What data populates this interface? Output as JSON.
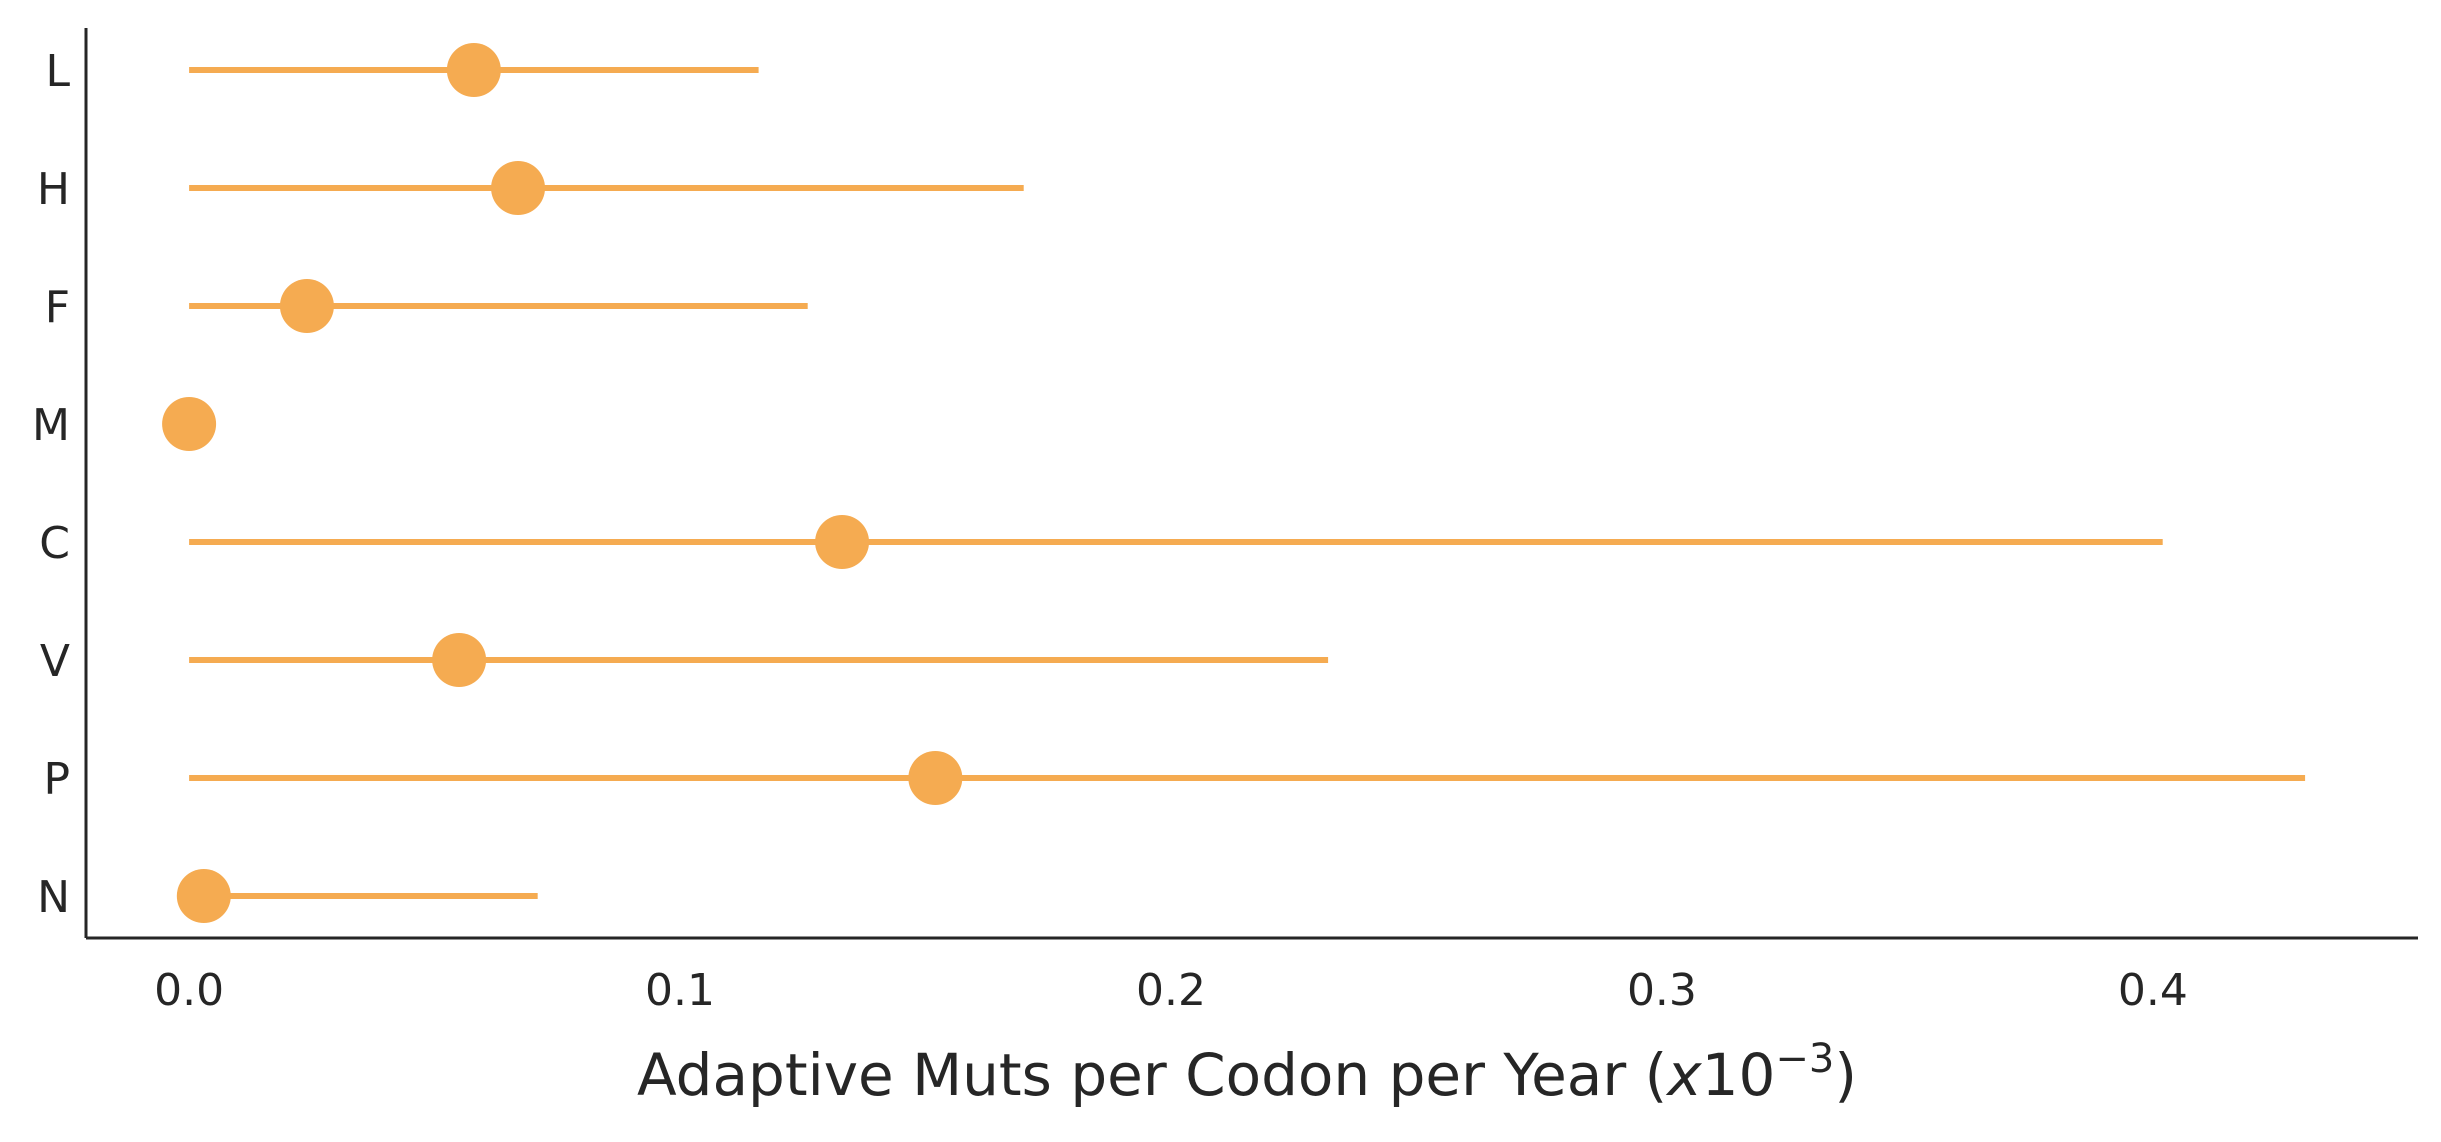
{
  "chart_data": {
    "type": "scatter",
    "subtype": "point-with-interval",
    "orientation": "horizontal",
    "title": "",
    "xlabel": "Adaptive Muts per Codon per Year (",
    "xlabel_math": "x",
    "xlabel_base": "10",
    "xlabel_exponent": "−3",
    "xlabel_close": ")",
    "ylabel": "",
    "xlim": [
      -0.021,
      0.454
    ],
    "xticks": [
      0.0,
      0.1,
      0.2,
      0.3,
      0.4
    ],
    "xtick_labels": [
      "0.0",
      "0.1",
      "0.2",
      "0.3",
      "0.4"
    ],
    "categories": [
      "L",
      "H",
      "F",
      "M",
      "C",
      "V",
      "P",
      "N"
    ],
    "values": [
      0.058,
      0.067,
      0.024,
      0.0,
      0.133,
      0.055,
      0.152,
      0.003
    ],
    "lower": [
      0.0,
      0.0,
      0.0,
      0.0,
      0.0,
      0.0,
      0.0,
      0.003
    ],
    "upper": [
      0.116,
      0.17,
      0.126,
      0.0,
      0.402,
      0.232,
      0.431,
      0.071
    ],
    "color": "#f5ab51",
    "axis_color": "#262626",
    "grid": false,
    "spines": [
      "left",
      "bottom"
    ]
  }
}
